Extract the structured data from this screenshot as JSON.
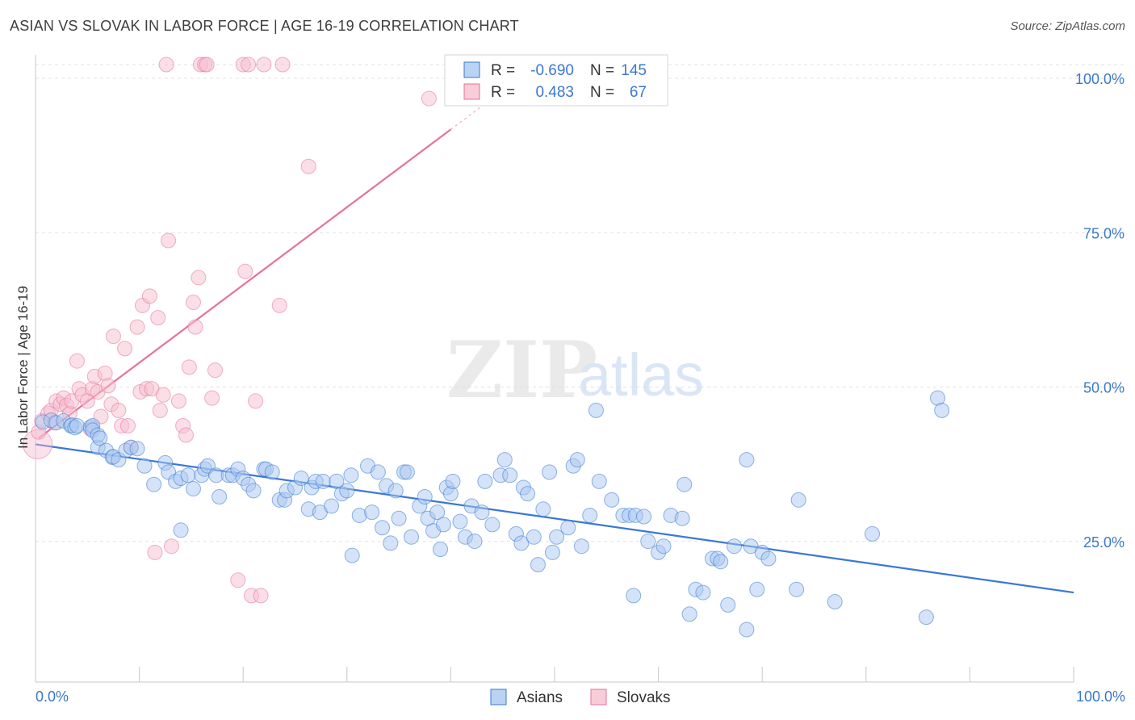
{
  "title": "ASIAN VS SLOVAK IN LABOR FORCE | AGE 16-19 CORRELATION CHART",
  "source": "Source: ZipAtlas.com",
  "watermark": {
    "zip": "ZIP",
    "atlas": "atlas"
  },
  "colors": {
    "asians": "#3a78d4",
    "slovaks": "#e8719b",
    "asians_fill": "#a9c8ef",
    "slovaks_fill": "#f6bfd0",
    "tick": "#3a78c9"
  },
  "legend_box": {
    "rows": [
      {
        "r_label": "R =",
        "r_value": "-0.690",
        "n_label": "N =",
        "n_value": "145"
      },
      {
        "r_label": "R =",
        "r_value": "0.483",
        "n_label": "N =",
        "n_value": "67"
      }
    ]
  },
  "bottom_legend": [
    "Asians",
    "Slovaks"
  ],
  "chart_data": {
    "type": "scatter",
    "title": "ASIAN VS SLOVAK IN LABOR FORCE | AGE 16-19 CORRELATION CHART",
    "xlabel": "",
    "ylabel": "In Labor Force | Age 16-19",
    "xlim": [
      0,
      100
    ],
    "ylim": [
      0,
      105
    ],
    "x_tick_labels": [
      "0.0%",
      "100.0%"
    ],
    "y_ticks": [
      25,
      50,
      75,
      100
    ],
    "y_tick_labels": [
      "25.0%",
      "50.0%",
      "75.0%",
      "100.0%"
    ],
    "grid": "horizontal dashed",
    "legend": "top-center",
    "series": [
      {
        "name": "Asians",
        "R": -0.69,
        "N": 145,
        "trend": {
          "x": [
            0,
            100
          ],
          "y": [
            38.5,
            14.5
          ]
        },
        "points": [
          [
            0.7,
            42.1
          ],
          [
            1.5,
            42.4
          ],
          [
            2,
            42
          ],
          [
            2.7,
            42.3
          ],
          [
            3.4,
            41.5
          ],
          [
            3.5,
            41.6
          ],
          [
            3.8,
            41.2
          ],
          [
            4,
            41.5
          ],
          [
            5.3,
            41.3
          ],
          [
            5.5,
            41.5
          ],
          [
            5.5,
            40.8
          ],
          [
            6,
            38
          ],
          [
            6,
            40
          ],
          [
            6.2,
            39.5
          ],
          [
            6.8,
            37.5
          ],
          [
            7.4,
            36.4
          ],
          [
            7.5,
            36.5
          ],
          [
            8,
            36
          ],
          [
            8.7,
            37.5
          ],
          [
            9.2,
            38
          ],
          [
            9.8,
            37.8
          ],
          [
            10.5,
            35
          ],
          [
            11.4,
            32
          ],
          [
            12.5,
            35.5
          ],
          [
            12.8,
            34
          ],
          [
            13.5,
            32.5
          ],
          [
            14,
            33
          ],
          [
            14,
            24.6
          ],
          [
            14.7,
            33.5
          ],
          [
            15.2,
            31.3
          ],
          [
            16,
            33.5
          ],
          [
            16.3,
            34.5
          ],
          [
            16.6,
            35
          ],
          [
            17.4,
            33.5
          ],
          [
            17.7,
            30
          ],
          [
            18.6,
            33.5
          ],
          [
            19,
            33.5
          ],
          [
            19.5,
            34.5
          ],
          [
            20,
            33
          ],
          [
            20.5,
            32
          ],
          [
            21,
            31
          ],
          [
            22,
            34.5
          ],
          [
            22.2,
            34.5
          ],
          [
            22.8,
            34
          ],
          [
            23.5,
            29.5
          ],
          [
            24,
            29.5
          ],
          [
            24.2,
            31
          ],
          [
            25,
            31.5
          ],
          [
            25.6,
            33
          ],
          [
            26.3,
            28
          ],
          [
            26.6,
            31.5
          ],
          [
            27,
            32.5
          ],
          [
            27.4,
            27.5
          ],
          [
            27.7,
            32.5
          ],
          [
            28.5,
            28.5
          ],
          [
            29,
            32.5
          ],
          [
            29.5,
            30.5
          ],
          [
            30,
            31
          ],
          [
            30.4,
            33.5
          ],
          [
            30.5,
            20.5
          ],
          [
            31.2,
            27
          ],
          [
            32,
            35
          ],
          [
            32.4,
            27.5
          ],
          [
            33,
            34
          ],
          [
            33.4,
            25
          ],
          [
            33.8,
            31.8
          ],
          [
            34.2,
            22.5
          ],
          [
            34.7,
            31
          ],
          [
            35,
            26.5
          ],
          [
            35.5,
            34
          ],
          [
            35.8,
            34
          ],
          [
            36.2,
            23.5
          ],
          [
            37,
            28.5
          ],
          [
            37.5,
            30
          ],
          [
            37.8,
            26.5
          ],
          [
            38.3,
            24.5
          ],
          [
            38.7,
            27.5
          ],
          [
            39,
            21.5
          ],
          [
            39.3,
            25.5
          ],
          [
            39.6,
            31.5
          ],
          [
            40,
            30.5
          ],
          [
            40.2,
            32.5
          ],
          [
            40.9,
            26
          ],
          [
            41.4,
            23.5
          ],
          [
            42,
            28.5
          ],
          [
            42.3,
            22.8
          ],
          [
            43,
            27.5
          ],
          [
            43.3,
            32.5
          ],
          [
            44,
            25.5
          ],
          [
            44.8,
            33.5
          ],
          [
            45.2,
            36
          ],
          [
            45.7,
            33.5
          ],
          [
            46.3,
            24
          ],
          [
            46.8,
            22.5
          ],
          [
            47,
            31.5
          ],
          [
            47.4,
            30.5
          ],
          [
            48,
            23.5
          ],
          [
            48.4,
            19
          ],
          [
            48.9,
            28
          ],
          [
            49.5,
            34
          ],
          [
            49.8,
            21
          ],
          [
            50.2,
            23.5
          ],
          [
            51.3,
            25
          ],
          [
            51.8,
            35
          ],
          [
            52.2,
            36
          ],
          [
            52.6,
            22
          ],
          [
            53.4,
            27
          ],
          [
            54,
            44
          ],
          [
            54.3,
            32.5
          ],
          [
            55.5,
            29.5
          ],
          [
            56.6,
            27
          ],
          [
            57.2,
            27
          ],
          [
            57.6,
            14
          ],
          [
            57.8,
            27
          ],
          [
            58.6,
            26.8
          ],
          [
            59,
            22.8
          ],
          [
            60,
            21
          ],
          [
            60.5,
            22
          ],
          [
            61.2,
            27
          ],
          [
            62.3,
            26.5
          ],
          [
            62.5,
            32
          ],
          [
            63,
            11
          ],
          [
            63.6,
            15
          ],
          [
            64.3,
            14.5
          ],
          [
            65.2,
            20
          ],
          [
            65.7,
            20
          ],
          [
            66,
            19.5
          ],
          [
            66.7,
            12.5
          ],
          [
            67.3,
            22
          ],
          [
            68.5,
            8.5
          ],
          [
            68.5,
            36
          ],
          [
            68.9,
            22
          ],
          [
            69.5,
            15
          ],
          [
            70,
            21
          ],
          [
            70.6,
            20
          ],
          [
            73.3,
            15
          ],
          [
            73.5,
            29.5
          ],
          [
            77,
            13
          ],
          [
            80.6,
            24
          ],
          [
            85.8,
            10.5
          ],
          [
            86.9,
            46
          ],
          [
            87.3,
            44
          ]
        ]
      },
      {
        "name": "Slovaks",
        "R": 0.483,
        "N": 67,
        "trend": {
          "x": [
            0.3,
            40
          ],
          "y": [
            39.5,
            89.5
          ]
        },
        "points": [
          [
            0.2,
            38.5
          ],
          [
            0.3,
            40.5
          ],
          [
            0.6,
            42.3
          ],
          [
            1.2,
            43.5
          ],
          [
            1.5,
            44
          ],
          [
            1.8,
            42
          ],
          [
            2,
            45.5
          ],
          [
            2.4,
            45
          ],
          [
            2.7,
            46
          ],
          [
            3,
            44.8
          ],
          [
            3.3,
            43.5
          ],
          [
            3.5,
            45.5
          ],
          [
            4,
            52
          ],
          [
            4.2,
            47.5
          ],
          [
            4.5,
            46.5
          ],
          [
            5,
            45.5
          ],
          [
            5.3,
            41
          ],
          [
            5.5,
            47.5
          ],
          [
            5.7,
            49.5
          ],
          [
            6,
            47
          ],
          [
            6.3,
            43
          ],
          [
            6.7,
            50
          ],
          [
            7,
            48
          ],
          [
            7.3,
            45
          ],
          [
            7.5,
            56
          ],
          [
            8,
            44
          ],
          [
            8.3,
            41.5
          ],
          [
            8.6,
            54
          ],
          [
            8.9,
            41.5
          ],
          [
            9.2,
            38
          ],
          [
            9.8,
            57.5
          ],
          [
            10.1,
            47
          ],
          [
            10.3,
            61
          ],
          [
            10.7,
            47.5
          ],
          [
            11,
            62.5
          ],
          [
            11.2,
            47.5
          ],
          [
            11.5,
            21
          ],
          [
            11.8,
            59
          ],
          [
            12,
            44
          ],
          [
            12.3,
            46.5
          ],
          [
            12.6,
            100
          ],
          [
            12.8,
            71.5
          ],
          [
            13.1,
            22
          ],
          [
            13.8,
            45.5
          ],
          [
            14.2,
            41.5
          ],
          [
            14.5,
            40
          ],
          [
            14.8,
            51
          ],
          [
            15.2,
            61.5
          ],
          [
            15.4,
            57.5
          ],
          [
            15.7,
            65.5
          ],
          [
            15.9,
            100
          ],
          [
            16.3,
            100
          ],
          [
            16.5,
            100
          ],
          [
            17,
            46
          ],
          [
            17.3,
            50.5
          ],
          [
            19.5,
            16.5
          ],
          [
            20,
            100
          ],
          [
            20.2,
            66.5
          ],
          [
            20.5,
            100
          ],
          [
            20.8,
            14
          ],
          [
            21.2,
            45.5
          ],
          [
            21.7,
            14
          ],
          [
            22,
            100
          ],
          [
            23.5,
            61
          ],
          [
            23.8,
            100
          ],
          [
            26.3,
            83.5
          ],
          [
            37.9,
            94.5
          ],
          [
            43.5,
            100
          ]
        ]
      }
    ]
  }
}
